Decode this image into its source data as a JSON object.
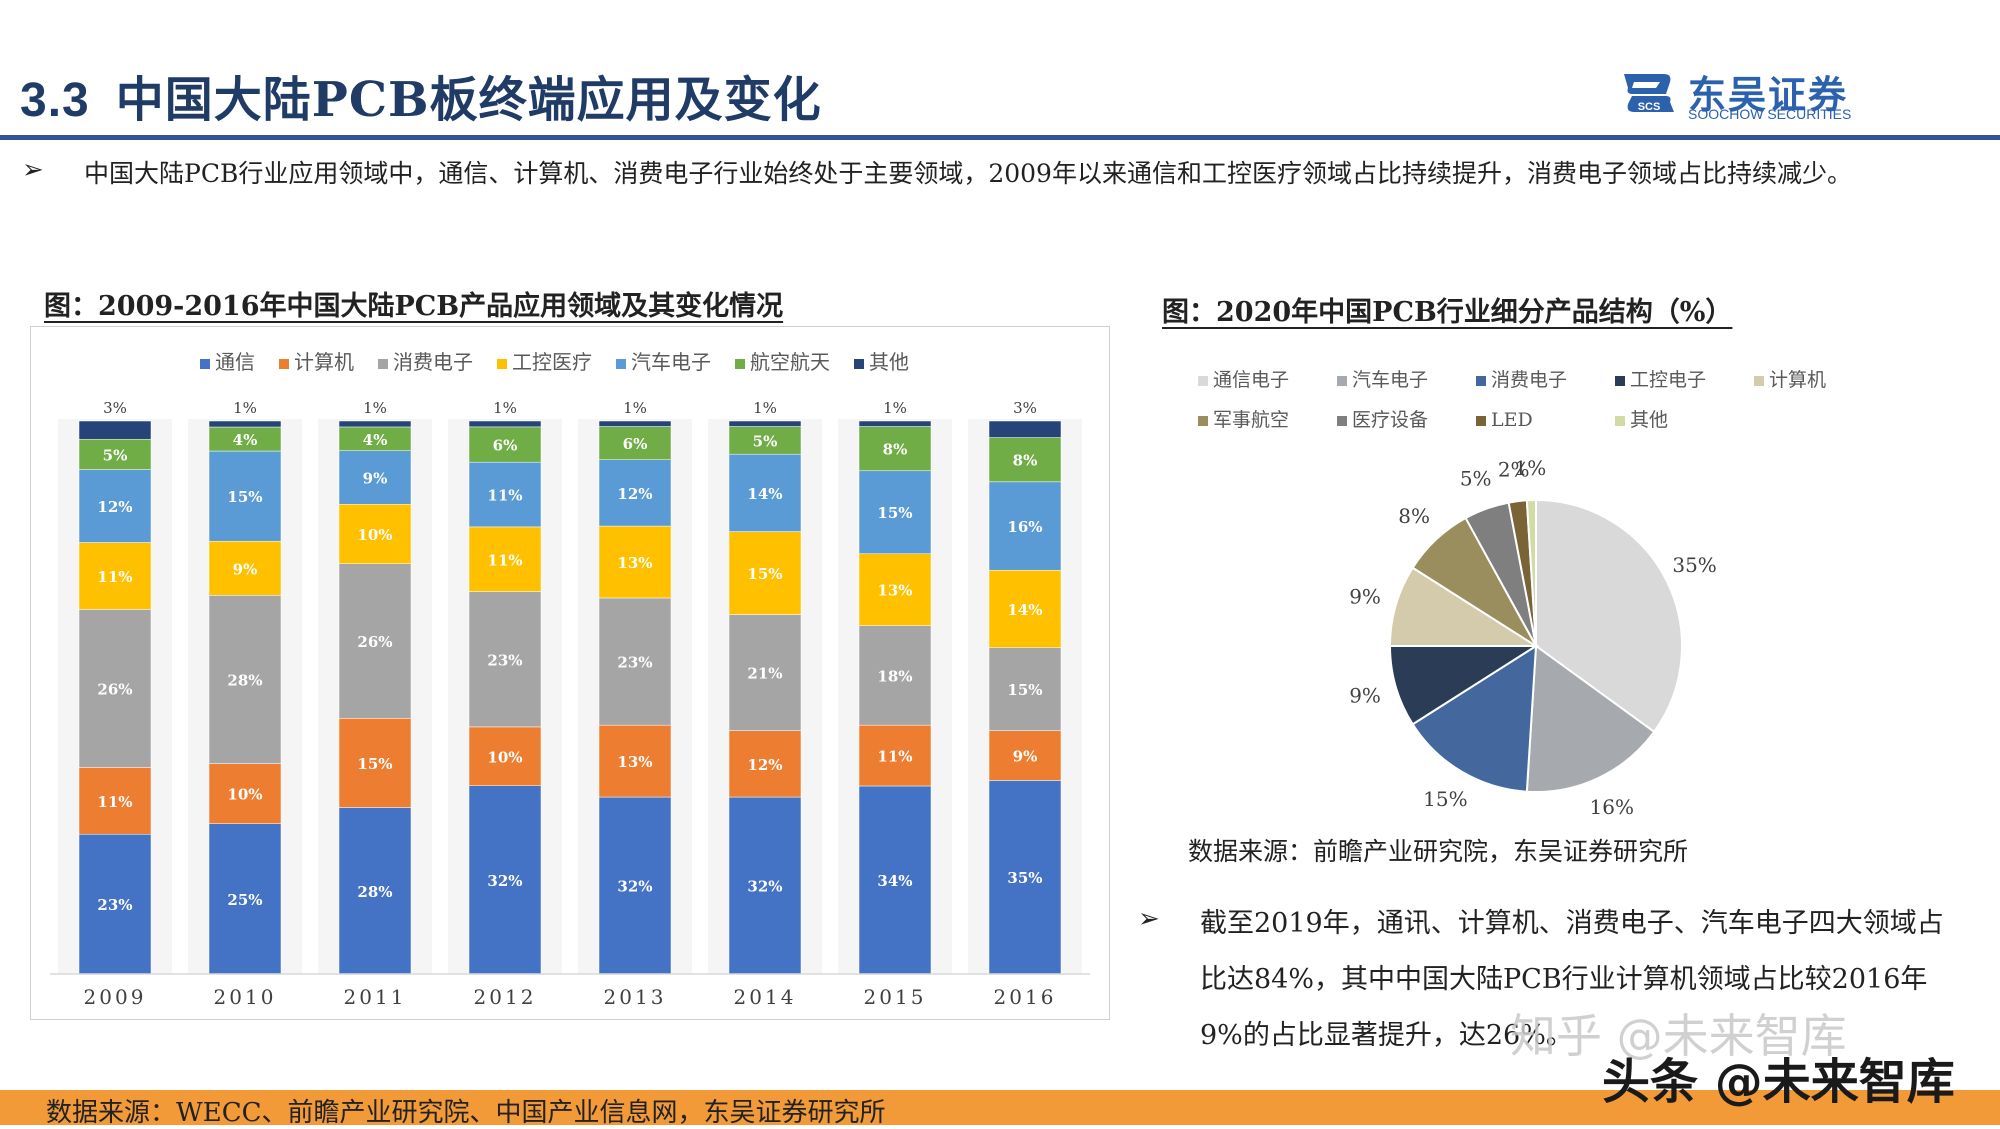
{
  "header": {
    "section_number": "3.3",
    "title": "中国大陆PCB板终端应用及变化",
    "logo_cn": "东吴证券",
    "logo_en": "SOOCHOW SECURITIES",
    "logo_mark_text": "SCS"
  },
  "intro": {
    "bullet": "➢",
    "text": "中国大陆PCB行业应用领域中，通信、计算机、消费电子行业始终处于主要领域，2009年以来通信和工控医疗领域占比持续提升，消费电子领域占比持续减少。"
  },
  "left_figure": {
    "title": "图：2009-2016年中国大陆PCB产品应用领域及其变化情况"
  },
  "right_figure": {
    "title": "图：2020年中国PCB行业细分产品结构（%）",
    "source": "数据来源：前瞻产业研究院，东吴证券研究所"
  },
  "bottom_note": {
    "bullet": "➢",
    "text": "截至2019年，通讯、计算机、消费电子、汽车电子四大领域占比达84%，其中中国大陆PCB行业计算机领域占比较2016年9%的占比显著提升，达26%。"
  },
  "footer": {
    "source": "数据来源：WECC、前瞻产业研究院、中国产业信息网，东吴证券研究所"
  },
  "watermark": {
    "line1": "知乎 @未来智库",
    "line2": "头条 @未来智库"
  },
  "chart_data": [
    {
      "type": "bar",
      "stacked": true,
      "normalized": true,
      "categories": [
        "2009",
        "2010",
        "2011",
        "2012",
        "2013",
        "2014",
        "2015",
        "2016"
      ],
      "series": [
        {
          "name": "通信",
          "color": "#4472c4",
          "values": [
            23,
            25,
            28,
            32,
            32,
            32,
            34,
            35
          ]
        },
        {
          "name": "计算机",
          "color": "#ed7d31",
          "values": [
            11,
            10,
            15,
            10,
            13,
            12,
            11,
            9
          ]
        },
        {
          "name": "消费电子",
          "color": "#a5a5a5",
          "values": [
            26,
            28,
            26,
            23,
            23,
            21,
            18,
            15
          ]
        },
        {
          "name": "工控医疗",
          "color": "#ffc000",
          "values": [
            11,
            9,
            10,
            11,
            13,
            15,
            13,
            14
          ]
        },
        {
          "name": "汽车电子",
          "color": "#5b9bd5",
          "values": [
            12,
            15,
            9,
            11,
            12,
            14,
            15,
            16
          ]
        },
        {
          "name": "航空航天",
          "color": "#70ad47",
          "values": [
            5,
            4,
            4,
            6,
            6,
            5,
            8,
            8
          ]
        },
        {
          "name": "其他",
          "color": "#264478",
          "values": [
            3,
            1,
            1,
            1,
            1,
            1,
            1,
            3
          ]
        }
      ],
      "value_suffix": "%",
      "legend_position": "top",
      "grid": false,
      "xlabel": "",
      "ylabel": ""
    },
    {
      "type": "pie",
      "labels": [
        "通信电子",
        "汽车电子",
        "消费电子",
        "工控电子",
        "计算机",
        "军事航空",
        "医疗设备",
        "LED",
        "其他"
      ],
      "values": [
        35,
        16,
        15,
        9,
        9,
        8,
        5,
        2,
        1
      ],
      "colors": [
        "#d9d9d9",
        "#a6aaae",
        "#44689e",
        "#2b3c57",
        "#d3cbab",
        "#9a8d5e",
        "#7f7f7f",
        "#7a6336",
        "#d1dba6"
      ],
      "value_suffix": "%",
      "legend_position": "top"
    }
  ]
}
